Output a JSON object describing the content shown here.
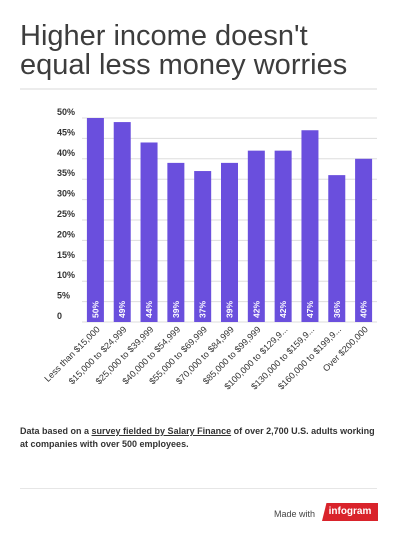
{
  "title": "Higher income doesn't equal less money worries",
  "caption": {
    "prefix": "Data based on a ",
    "link": "survey fielded by Salary Finance",
    "suffix": " of over 2,700 U.S. adults working at companies with over 500 employees."
  },
  "footer": {
    "made_with": "Made with",
    "brand": "infogram"
  },
  "colors": {
    "bar": "#6a4fdd",
    "grid": "#dddddd",
    "brand": "#d9232b"
  },
  "chart_data": {
    "type": "bar",
    "categories": [
      "Less than $15,000",
      "$15,000 to $24,999",
      "$25,000 to $39,999",
      "$40,000 to $54,999",
      "$55,000 to $69,999",
      "$70,000 to $84,999",
      "$85,000 to $99,999",
      "$100,000 to $129,9...",
      "$130,000 to $159,9...",
      "$160,000 to $199,9...",
      "Over $200,000"
    ],
    "values": [
      50,
      49,
      44,
      39,
      37,
      39,
      42,
      42,
      47,
      36,
      40
    ],
    "value_labels": [
      "50%",
      "49%",
      "44%",
      "39%",
      "37%",
      "39%",
      "42%",
      "42%",
      "47%",
      "36%",
      "40%"
    ],
    "yticks": [
      "0",
      "5%",
      "10%",
      "15%",
      "20%",
      "25%",
      "30%",
      "35%",
      "40%",
      "45%",
      "50%"
    ],
    "ylim": [
      0,
      50
    ],
    "grid": true
  }
}
